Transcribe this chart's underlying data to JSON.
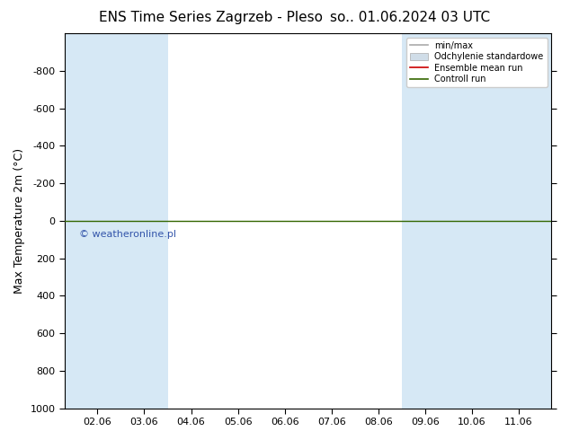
{
  "title_left": "ENS Time Series Zagrzeb - Pleso",
  "title_right": "so.. 01.06.2024 03 UTC",
  "ylabel": "Max Temperature 2m (°C)",
  "ylim_top": -1000,
  "ylim_bottom": 1000,
  "yticks": [
    -800,
    -600,
    -400,
    -200,
    0,
    200,
    400,
    600,
    800,
    1000
  ],
  "xlabel_dates": [
    "02.06",
    "03.06",
    "04.06",
    "05.06",
    "06.06",
    "07.06",
    "08.06",
    "09.06",
    "10.06",
    "11.06"
  ],
  "x_positions": [
    1,
    2,
    3,
    4,
    5,
    6,
    7,
    8,
    9,
    10
  ],
  "x_min": 0.3,
  "x_max": 10.7,
  "blue_columns_x": [
    0.3,
    1.5,
    7.5,
    8.5,
    9.5
  ],
  "blue_columns_widths": [
    1.2,
    1.0,
    1.0,
    1.0,
    1.2
  ],
  "blue_color": "#d6e8f5",
  "green_line_color": "#336600",
  "red_line_color": "#cc0000",
  "background_color": "#ffffff",
  "watermark": "© weatheronline.pl",
  "watermark_color": "#3355aa",
  "legend_items": [
    "min/max",
    "Odchylenie standardowe",
    "Ensemble mean run",
    "Controll run"
  ],
  "title_fontsize": 11,
  "tick_fontsize": 8,
  "ylabel_fontsize": 9
}
